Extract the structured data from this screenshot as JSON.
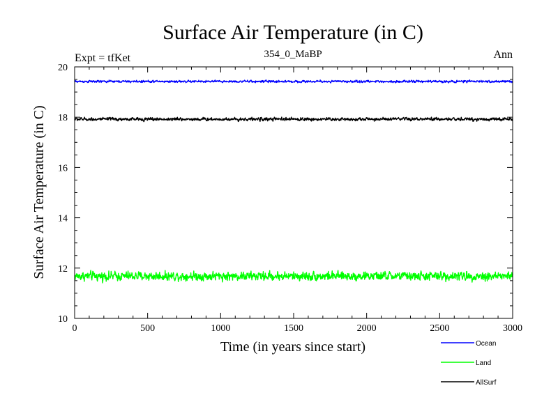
{
  "chart_data": {
    "type": "line",
    "title": "Surface Air Temperature (in C)",
    "subtitle": "354_0_MaBP",
    "left_annotation": "Expt = tfKet",
    "right_annotation": "Ann",
    "xlabel": "Time (in years since start)",
    "ylabel": "Surface Air Temperature (in C)",
    "xlim": [
      0,
      3000
    ],
    "ylim": [
      10,
      20
    ],
    "x_ticks": [
      0,
      500,
      1000,
      1500,
      2000,
      2500,
      3000
    ],
    "y_ticks": [
      10,
      12,
      14,
      16,
      18,
      20
    ],
    "x_minor_step": 100,
    "y_minor_step": 0.5,
    "grid": false,
    "legend_position": "bottom-right, outside plot",
    "series": [
      {
        "name": "Ocean",
        "color": "#0000ff",
        "mean": 19.42,
        "noise_range": [
          19.3,
          19.55
        ],
        "x_start": 0,
        "x_end": 3000
      },
      {
        "name": "Land",
        "color": "#00ff00",
        "mean": 11.68,
        "noise_range": [
          11.15,
          12.15
        ],
        "x_start": 0,
        "x_end": 3000
      },
      {
        "name": "AllSurf",
        "color": "#000000",
        "mean": 17.92,
        "noise_range": [
          17.75,
          18.12
        ],
        "x_start": 0,
        "x_end": 3000
      }
    ]
  }
}
